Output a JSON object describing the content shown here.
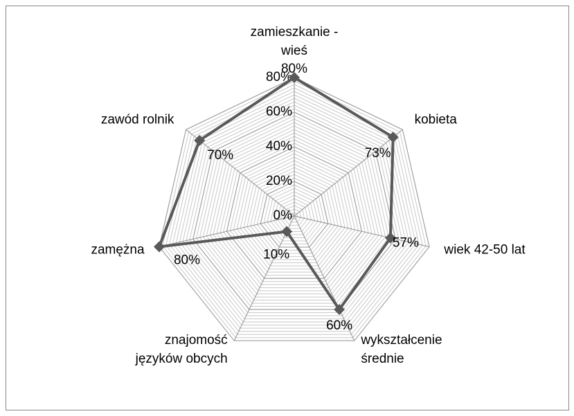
{
  "chart_data": {
    "type": "radar",
    "categories": [
      "zamieszkanie - wieś",
      "kobieta",
      "wiek 42-50 lat",
      "wykształcenie średnie",
      "znajomość języków obcych",
      "zamężna",
      "zawód rolnik"
    ],
    "series": [
      {
        "color": "#595959",
        "values": [
          80,
          73,
          57,
          60,
          10,
          80,
          70
        ],
        "value_labels": [
          "80%",
          "73%",
          "57%",
          "60%",
          "10%",
          "80%",
          "70%"
        ]
      }
    ],
    "ylim": [
      0,
      80
    ],
    "yticks": [
      {
        "value": 0,
        "label": "0%"
      },
      {
        "value": 20,
        "label": "20%"
      },
      {
        "value": 40,
        "label": "40%"
      },
      {
        "value": 60,
        "label": "60%"
      },
      {
        "value": 80,
        "label": "80%"
      }
    ],
    "grid": true
  }
}
